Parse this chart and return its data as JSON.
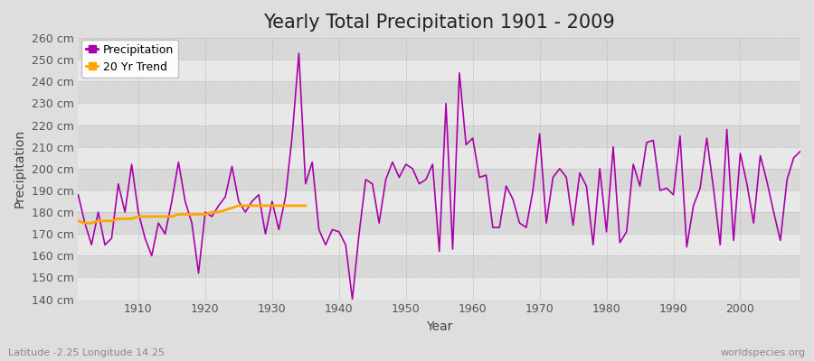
{
  "title": "Yearly Total Precipitation 1901 - 2009",
  "xlabel": "Year",
  "ylabel": "Precipitation",
  "subtitle": "Latitude -2.25 Longitude 14.25",
  "watermark": "worldspecies.org",
  "years": [
    1901,
    1902,
    1903,
    1904,
    1905,
    1906,
    1907,
    1908,
    1909,
    1910,
    1911,
    1912,
    1913,
    1914,
    1915,
    1916,
    1917,
    1918,
    1919,
    1920,
    1921,
    1922,
    1923,
    1924,
    1925,
    1926,
    1927,
    1928,
    1929,
    1930,
    1931,
    1932,
    1933,
    1934,
    1935,
    1936,
    1937,
    1938,
    1939,
    1940,
    1941,
    1942,
    1943,
    1944,
    1945,
    1946,
    1947,
    1948,
    1949,
    1950,
    1951,
    1952,
    1953,
    1954,
    1955,
    1956,
    1957,
    1958,
    1959,
    1960,
    1961,
    1962,
    1963,
    1964,
    1965,
    1966,
    1967,
    1968,
    1969,
    1970,
    1971,
    1972,
    1973,
    1974,
    1975,
    1976,
    1977,
    1978,
    1979,
    1980,
    1981,
    1982,
    1983,
    1984,
    1985,
    1986,
    1987,
    1988,
    1989,
    1990,
    1991,
    1992,
    1993,
    1994,
    1995,
    1996,
    1997,
    1998,
    1999,
    2000,
    2001,
    2002,
    2003,
    2004,
    2005,
    2006,
    2007,
    2008,
    2009
  ],
  "precip": [
    188,
    175,
    165,
    180,
    165,
    168,
    193,
    180,
    202,
    180,
    168,
    160,
    175,
    170,
    185,
    203,
    185,
    175,
    152,
    180,
    178,
    183,
    187,
    201,
    185,
    180,
    185,
    188,
    170,
    185,
    172,
    187,
    215,
    253,
    193,
    203,
    172,
    165,
    172,
    171,
    165,
    140,
    170,
    195,
    193,
    175,
    195,
    203,
    196,
    202,
    200,
    193,
    195,
    202,
    162,
    230,
    163,
    244,
    211,
    214,
    196,
    197,
    173,
    173,
    192,
    186,
    175,
    173,
    190,
    216,
    175,
    196,
    200,
    196,
    174,
    198,
    192,
    165,
    200,
    171,
    210,
    166,
    171,
    202,
    192,
    212,
    213,
    190,
    191,
    188,
    215,
    164,
    183,
    191,
    214,
    191,
    165,
    218,
    167,
    207,
    193,
    175,
    206,
    194,
    180,
    167,
    195,
    205,
    208
  ],
  "trend_years": [
    1901,
    1902,
    1903,
    1904,
    1905,
    1906,
    1907,
    1908,
    1909,
    1910,
    1911,
    1912,
    1913,
    1914,
    1915,
    1916,
    1917,
    1918,
    1919,
    1920,
    1921,
    1922,
    1923,
    1924,
    1925,
    1926,
    1927,
    1928,
    1929,
    1930,
    1931,
    1932,
    1933,
    1934,
    1935
  ],
  "trend_values": [
    176,
    175,
    175,
    176,
    176,
    176,
    177,
    177,
    177,
    178,
    178,
    178,
    178,
    178,
    178,
    179,
    179,
    179,
    179,
    179,
    180,
    180,
    181,
    182,
    183,
    183,
    183,
    183,
    183,
    183,
    183,
    183,
    183,
    183,
    183
  ],
  "ylim": [
    140,
    260
  ],
  "yticks": [
    140,
    150,
    160,
    170,
    180,
    190,
    200,
    210,
    220,
    230,
    240,
    250,
    260
  ],
  "xticks": [
    1910,
    1920,
    1930,
    1940,
    1950,
    1960,
    1970,
    1980,
    1990,
    2000
  ],
  "xlim": [
    1901,
    2009
  ],
  "precip_color": "#aa00aa",
  "trend_color": "#FFA500",
  "bg_color": "#dedede",
  "band_color_light": "#e8e8e8",
  "band_color_dark": "#d8d8d8",
  "title_fontsize": 15,
  "label_fontsize": 10,
  "tick_fontsize": 9,
  "legend_fontsize": 9
}
